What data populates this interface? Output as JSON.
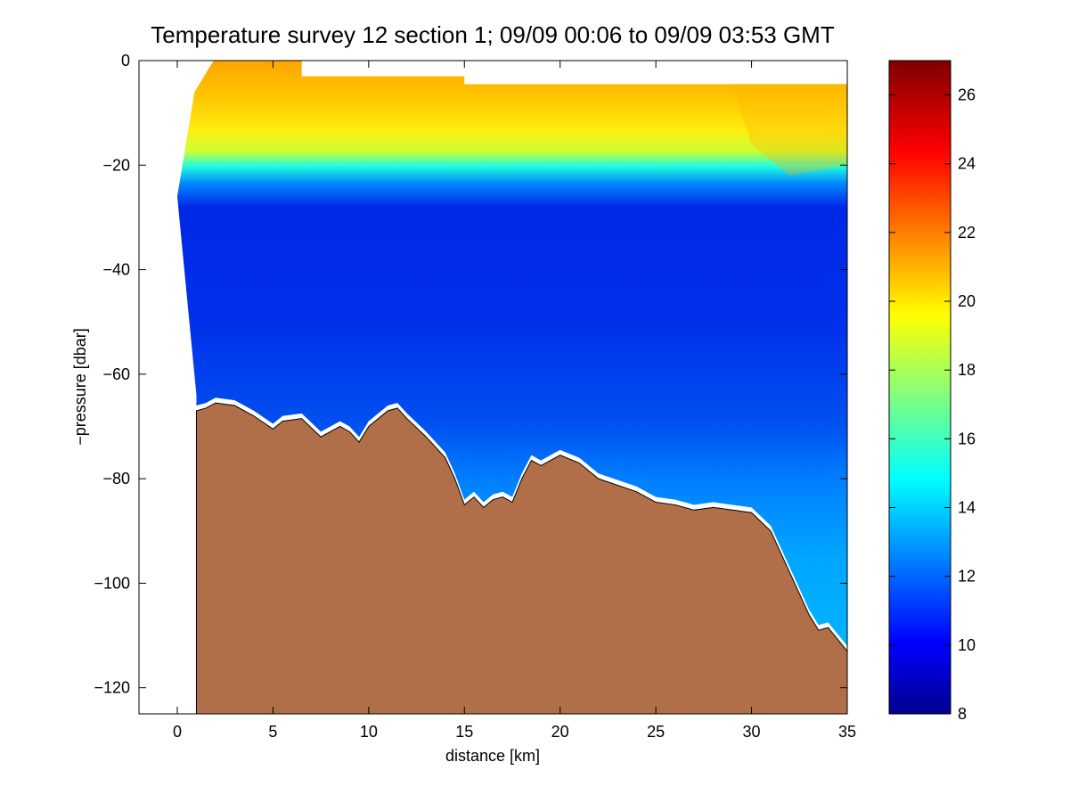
{
  "chart_data": {
    "type": "heatmap",
    "title": "Temperature survey 12 section 1; 09/09 00:06 to 09/09 03:53 GMT",
    "xlabel": "distance [km]",
    "ylabel": "−pressure [dbar]",
    "xlim": [
      -2,
      35
    ],
    "ylim": [
      -125,
      0
    ],
    "x_ticks": [
      0,
      5,
      10,
      15,
      20,
      25,
      30,
      35
    ],
    "x_tick_labels": [
      "0",
      "5",
      "10",
      "15",
      "20",
      "25",
      "30",
      "35"
    ],
    "y_ticks": [
      0,
      -20,
      -40,
      -60,
      -80,
      -100,
      -120
    ],
    "y_tick_labels": [
      "0",
      "−20",
      "−40",
      "−60",
      "−80",
      "−100",
      "−120"
    ],
    "grid": false,
    "colorbar": {
      "min": 8,
      "max": 27,
      "ticks": [
        8,
        10,
        12,
        14,
        16,
        18,
        20,
        22,
        24,
        26
      ],
      "tick_labels": [
        "8",
        "10",
        "12",
        "14",
        "16",
        "18",
        "20",
        "22",
        "24",
        "26"
      ],
      "colormap": "jet"
    },
    "data_region_x": [
      1,
      35
    ],
    "surface_depth": [
      [
        0.9,
        -6
      ],
      [
        1.9,
        0
      ],
      [
        6.5,
        0
      ],
      [
        6.5,
        -3
      ],
      [
        15,
        -3
      ],
      [
        15,
        -4.5
      ],
      [
        35,
        -4.5
      ]
    ],
    "temperature_layers": [
      {
        "depth_range": [
          0,
          -10
        ],
        "temperature": 21
      },
      {
        "depth_range": [
          -10,
          -18
        ],
        "temperature": 20
      },
      {
        "depth_range": [
          -18,
          -22
        ],
        "temperature": 17
      },
      {
        "depth_range": [
          -22,
          -28
        ],
        "temperature": 12
      },
      {
        "depth_range": [
          -28,
          -80
        ],
        "temperature": 10
      },
      {
        "depth_range": [
          -80,
          -115
        ],
        "temperature": 13
      }
    ],
    "seabed_profile": [
      [
        1,
        -67
      ],
      [
        1.5,
        -66.5
      ],
      [
        2,
        -65.5
      ],
      [
        3,
        -66
      ],
      [
        4,
        -68
      ],
      [
        5,
        -70.5
      ],
      [
        5.5,
        -69
      ],
      [
        6.5,
        -68.5
      ],
      [
        7.5,
        -72
      ],
      [
        8.5,
        -70
      ],
      [
        9,
        -71
      ],
      [
        9.5,
        -73
      ],
      [
        10,
        -70
      ],
      [
        11,
        -67
      ],
      [
        11.5,
        -66.5
      ],
      [
        12,
        -68.5
      ],
      [
        13,
        -72
      ],
      [
        14,
        -76
      ],
      [
        14.5,
        -80
      ],
      [
        15,
        -85
      ],
      [
        15.5,
        -83.5
      ],
      [
        16,
        -85.5
      ],
      [
        16.5,
        -84
      ],
      [
        17,
        -83.5
      ],
      [
        17.5,
        -84.5
      ],
      [
        18,
        -80
      ],
      [
        18.5,
        -76.5
      ],
      [
        19,
        -77.5
      ],
      [
        20,
        -75.5
      ],
      [
        21,
        -77
      ],
      [
        22,
        -80
      ],
      [
        24,
        -82.5
      ],
      [
        25,
        -84.5
      ],
      [
        26,
        -85
      ],
      [
        27,
        -86
      ],
      [
        28,
        -85.5
      ],
      [
        29,
        -86
      ],
      [
        30,
        -86.5
      ],
      [
        31,
        -90
      ],
      [
        32,
        -98
      ],
      [
        33,
        -106
      ],
      [
        33.5,
        -109
      ],
      [
        34,
        -108.5
      ],
      [
        35,
        -113
      ]
    ],
    "seabed_color": "#b06f48"
  }
}
